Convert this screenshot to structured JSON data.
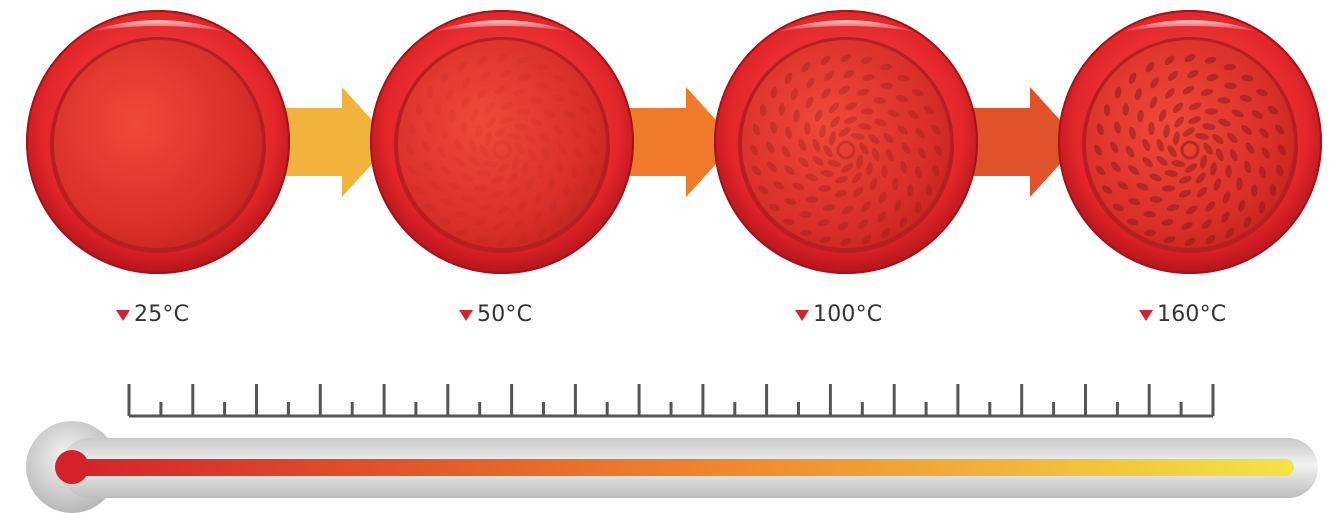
{
  "stages": [
    {
      "temperature": "25°C",
      "pattern_visibility": 0.0
    },
    {
      "temperature": "50°C",
      "pattern_visibility": 0.15
    },
    {
      "temperature": "100°C",
      "pattern_visibility": 0.55
    },
    {
      "temperature": "160°C",
      "pattern_visibility": 0.9
    }
  ],
  "colors": {
    "pan_red": "#e3262b",
    "pan_dark": "#b5141b",
    "arrow_1": "#f2b33d",
    "arrow_2": "#ee7a2a",
    "arrow_3": "#e0522a",
    "thermo_hot": "#d3222a",
    "thermo_warm": "#f08a2c",
    "thermo_cool": "#f2e447",
    "tube": "#d9d9d9",
    "ruler": "#555555",
    "marker": "#d3222a"
  }
}
